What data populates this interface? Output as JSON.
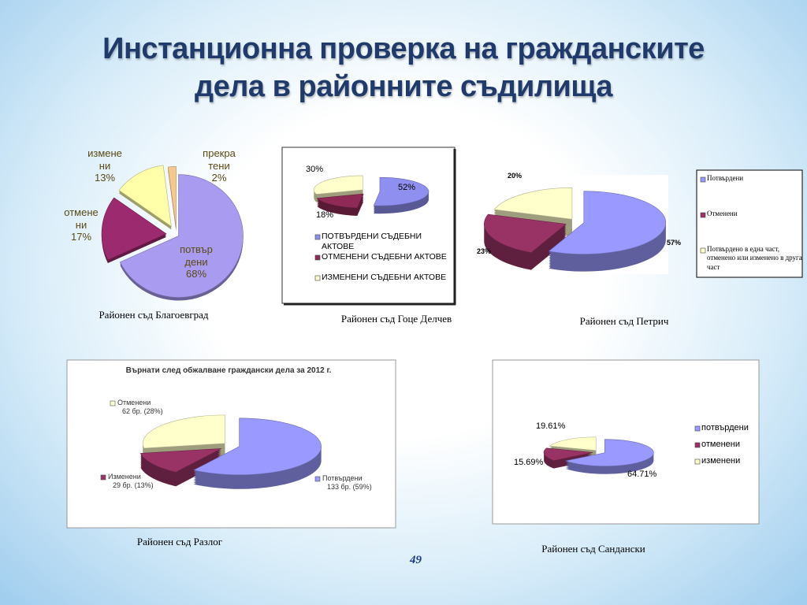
{
  "title": "Инстанционна проверка на гражданските дела в районните съдилища",
  "page_number": 49,
  "chart_data": [
    {
      "type": "pie",
      "caption": "Районен съд Благоевград",
      "categories": [
        "потвърдени",
        "отменени",
        "изменени",
        "прекратени"
      ],
      "values": [
        68,
        17,
        13,
        2
      ],
      "value_labels": [
        "68%",
        "17%",
        "13%",
        "2%"
      ],
      "colors": [
        "#a99cf0",
        "#9b2a6e",
        "#ffffaa",
        "#f5c98a"
      ]
    },
    {
      "type": "pie",
      "caption": "Районен съд Гоце Делчев",
      "categories": [
        "ПОТВЪРДЕНИ СЪДЕБНИ АКТОВЕ",
        "ОТМЕНЕНИ СЪДЕБНИ АКТОВЕ",
        "ИЗМЕНЕНИ СЪДЕБНИ АКТОВЕ"
      ],
      "values": [
        52,
        18,
        30
      ],
      "value_labels": [
        "52%",
        "18%",
        "30%"
      ],
      "colors": [
        "#8f8ff0",
        "#8e2a55",
        "#ffffcc"
      ],
      "legend": "bottom"
    },
    {
      "type": "pie",
      "caption": "Районен съд Петрич",
      "categories": [
        "Потвърдени",
        "Отменени",
        "Потвърдено в една част, отменено или изменено в друга част"
      ],
      "values": [
        57,
        23,
        20
      ],
      "value_labels": [
        "57%",
        "23%",
        "20%"
      ],
      "colors": [
        "#9999ff",
        "#993366",
        "#ffffcc"
      ],
      "legend": "right"
    },
    {
      "type": "pie",
      "title": "Върнати след обжалване граждански дела за 2012 г.",
      "caption": "Районен съд Разлог",
      "categories": [
        "Потвърдени",
        "Изменени",
        "Отменени"
      ],
      "values": [
        133,
        29,
        62
      ],
      "value_labels": [
        "133 бр. (59%)",
        "29 бр. (13%)",
        "62 бр. (28%)"
      ],
      "colors": [
        "#9999ff",
        "#993366",
        "#ffffcc"
      ]
    },
    {
      "type": "pie",
      "caption": "Районен съд Сандански",
      "categories": [
        "потвърдени",
        "отменени",
        "изменени"
      ],
      "values": [
        64.71,
        15.69,
        19.61
      ],
      "value_labels": [
        "64.71%",
        "15.69%",
        "19.61%"
      ],
      "colors": [
        "#9999ff",
        "#993366",
        "#ffffcc"
      ],
      "legend": "right"
    }
  ]
}
